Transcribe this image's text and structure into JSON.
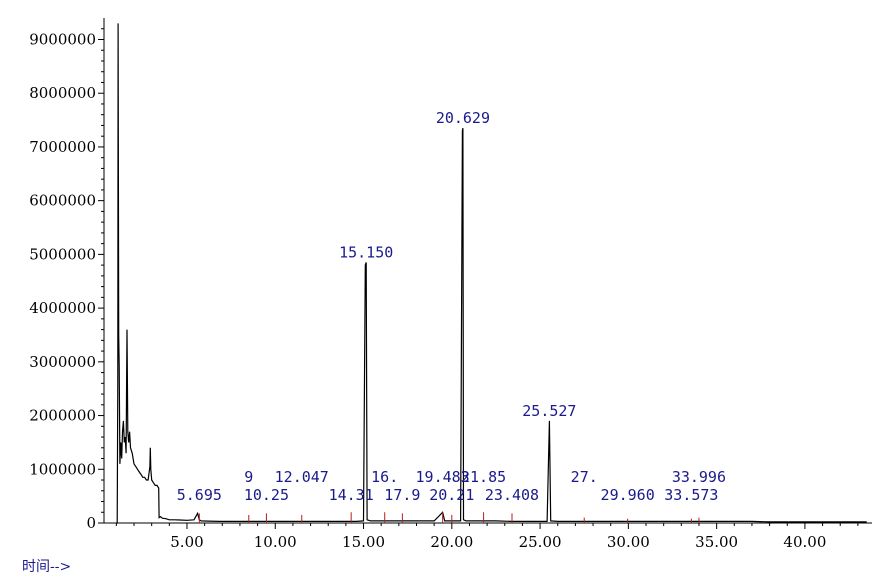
{
  "chart_data": {
    "type": "line",
    "title": "",
    "xlabel": "时间-->",
    "ylabel": "",
    "xlim": [
      0.3,
      43.8
    ],
    "ylim": [
      0,
      9400000
    ],
    "x_ticks": [
      5,
      10,
      15,
      20,
      25,
      30,
      35,
      40
    ],
    "x_tick_labels": [
      "5.00",
      "10.00",
      "15.00",
      "20.00",
      "25.00",
      "30.00",
      "35.00",
      "40.00"
    ],
    "y_ticks": [
      0,
      1000000,
      2000000,
      3000000,
      4000000,
      5000000,
      6000000,
      7000000,
      8000000,
      9000000
    ],
    "y_tick_labels": [
      "0",
      "1000000",
      "2000000",
      "3000000",
      "4000000",
      "5000000",
      "6000000",
      "7000000",
      "8000000",
      "9000000"
    ],
    "series": [
      {
        "x": [
          1.0,
          1.05,
          1.08,
          1.1,
          1.13,
          1.16,
          1.2,
          1.25,
          1.3,
          1.35,
          1.4,
          1.45,
          1.5,
          1.55,
          1.6,
          1.65,
          1.7,
          1.75,
          1.8,
          1.9,
          2.0,
          2.1,
          2.2,
          2.3,
          2.4,
          2.5,
          2.6,
          2.7,
          2.8,
          2.9,
          2.92,
          2.95,
          3.0,
          3.1,
          3.2,
          3.3,
          3.4,
          3.42,
          3.5,
          3.6,
          3.8,
          4.0,
          4.3,
          4.6,
          5.0,
          5.4,
          5.6,
          5.7,
          5.8,
          6.2,
          6.8,
          7.4,
          8.0,
          9.0,
          10.0,
          11.0,
          12.0,
          13.0,
          14.0,
          14.6,
          15.0,
          15.1,
          15.15,
          15.2,
          15.4,
          16.0,
          17.0,
          18.0,
          19.0,
          19.48,
          19.6,
          20.0,
          20.5,
          20.6,
          20.63,
          20.66,
          20.8,
          21.5,
          22.5,
          23.4,
          24.5,
          25.4,
          25.53,
          25.6,
          26.0,
          27.0,
          28.0,
          29.0,
          30.0,
          32.0,
          34.0,
          36.0,
          37.0,
          38.0,
          40.0,
          42.0,
          43.5
        ],
        "y": [
          0,
          0,
          2600000,
          9300000,
          3500000,
          2900000,
          1100000,
          1500000,
          1200000,
          1700000,
          1900000,
          1500000,
          1600000,
          1300000,
          3600000,
          1700000,
          1500000,
          1700000,
          1400000,
          1300000,
          1100000,
          1050000,
          1000000,
          950000,
          900000,
          850000,
          850000,
          800000,
          800000,
          1050000,
          1400000,
          1000000,
          800000,
          750000,
          700000,
          700000,
          650000,
          100000,
          120000,
          90000,
          80000,
          60000,
          60000,
          55000,
          50000,
          60000,
          180000,
          60000,
          40000,
          35000,
          30000,
          30000,
          30000,
          30000,
          30000,
          30000,
          30000,
          30000,
          30000,
          30000,
          40000,
          4800000,
          4850000,
          60000,
          40000,
          40000,
          40000,
          40000,
          40000,
          200000,
          40000,
          40000,
          40000,
          7300000,
          7350000,
          60000,
          40000,
          40000,
          40000,
          30000,
          30000,
          30000,
          1900000,
          40000,
          30000,
          30000,
          30000,
          30000,
          30000,
          30000,
          30000,
          30000,
          30000,
          20000,
          20000,
          20000,
          20000
        ]
      }
    ],
    "peaks": [
      {
        "x": 15.15,
        "y": 4850000,
        "label": "15.150"
      },
      {
        "x": 20.629,
        "y": 7350000,
        "label": "20.629"
      },
      {
        "x": 25.527,
        "y": 1900000,
        "label": "25.527"
      }
    ],
    "minor_peaks": [
      {
        "x": 5.7,
        "y": 180000,
        "label": "5.695"
      },
      {
        "x": 8.5,
        "y": 150000,
        "label": "9"
      },
      {
        "x": 9.5,
        "y": 180000,
        "label": "10.25"
      },
      {
        "x": 11.5,
        "y": 150000,
        "label": "12.047"
      },
      {
        "x": 14.3,
        "y": 200000,
        "label": "14.31"
      },
      {
        "x": 16.2,
        "y": 200000,
        "label": "16."
      },
      {
        "x": 17.2,
        "y": 180000,
        "label": "17.9"
      },
      {
        "x": 19.48,
        "y": 200000,
        "label": "19.483"
      },
      {
        "x": 20.0,
        "y": 150000,
        "label": "20.21"
      },
      {
        "x": 21.8,
        "y": 200000,
        "label": "21.85"
      },
      {
        "x": 23.41,
        "y": 180000,
        "label": "23.408"
      },
      {
        "x": 27.5,
        "y": 100000,
        "label": "27."
      },
      {
        "x": 29.96,
        "y": 80000,
        "label": "29.960"
      },
      {
        "x": 33.57,
        "y": 80000,
        "label": "33.573"
      },
      {
        "x": 33.996,
        "y": 100000,
        "label": "33.996"
      }
    ]
  }
}
